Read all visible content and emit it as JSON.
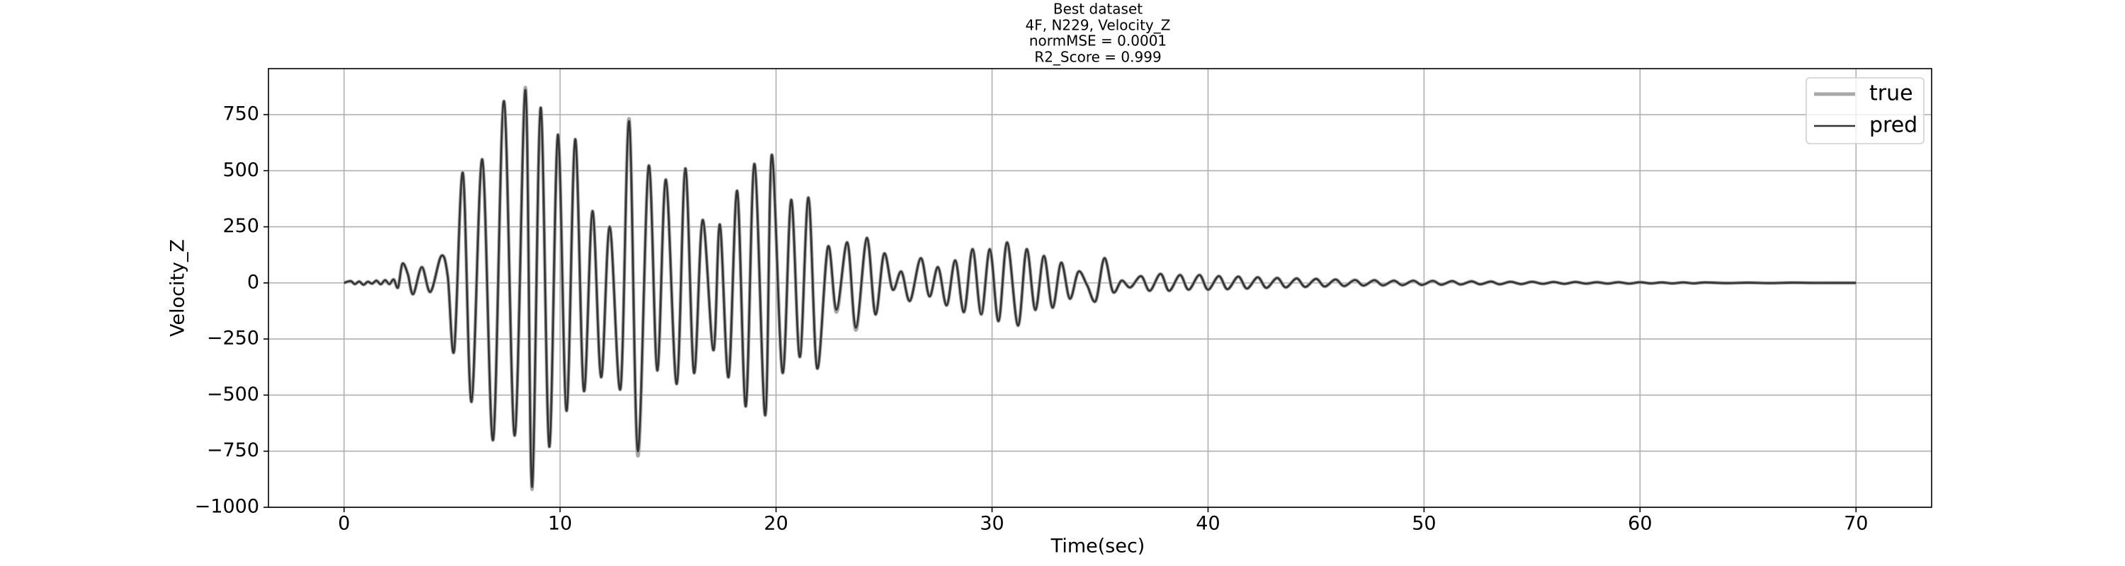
{
  "chart_data": {
    "type": "line",
    "title": [
      "Best dataset",
      "4F, N229, Velocity_Z",
      "normMSE = 0.0001",
      "R2_Score = 0.999"
    ],
    "xlabel": "Time(sec)",
    "ylabel": "Velocity_Z",
    "xlim": [
      -3.5,
      73.5
    ],
    "ylim": [
      -1000,
      955
    ],
    "xticks": [
      0,
      10,
      20,
      30,
      40,
      50,
      60,
      70
    ],
    "yticks": [
      {
        "value": -1000,
        "label": "−1000"
      },
      {
        "value": -750,
        "label": "−750"
      },
      {
        "value": -500,
        "label": "−500"
      },
      {
        "value": -250,
        "label": "−250"
      },
      0,
      250,
      500,
      750
    ],
    "grid": true,
    "legend": "upper right",
    "x": [
      0,
      0.3,
      0.5,
      0.7,
      0.9,
      1.1,
      1.3,
      1.5,
      1.7,
      1.9,
      2.1,
      2.3,
      2.5,
      2.7,
      2.95,
      3.2,
      3.6,
      4.0,
      4.5,
      4.8,
      5.1,
      5.5,
      5.9,
      6.4,
      6.9,
      7.4,
      7.9,
      8.4,
      8.7,
      9.1,
      9.5,
      9.9,
      10.3,
      10.7,
      11.1,
      11.5,
      11.9,
      12.3,
      12.8,
      13.2,
      13.6,
      14.1,
      14.5,
      14.9,
      15.4,
      15.8,
      16.2,
      16.6,
      17.1,
      17.4,
      17.8,
      18.2,
      18.6,
      19.0,
      19.5,
      19.8,
      20.3,
      20.7,
      21.1,
      21.5,
      21.9,
      22.4,
      22.8,
      23.3,
      23.7,
      24.2,
      24.6,
      25.0,
      25.4,
      25.8,
      26.2,
      26.7,
      27.1,
      27.5,
      27.9,
      28.3,
      28.7,
      29.1,
      29.5,
      29.9,
      30.3,
      30.7,
      31.2,
      31.6,
      32.0,
      32.4,
      32.8,
      33.2,
      33.6,
      34.0,
      34.4,
      34.8,
      35.2,
      35.6,
      36.0,
      36.4,
      36.9,
      37.3,
      37.8,
      38.2,
      38.7,
      39.1,
      39.6,
      40.0,
      40.5,
      40.9,
      41.4,
      41.8,
      42.3,
      42.7,
      43.2,
      43.6,
      44.1,
      44.5,
      45.0,
      45.4,
      45.9,
      46.3,
      46.8,
      47.2,
      47.7,
      48.1,
      48.6,
      49.0,
      49.5,
      49.9,
      50.4,
      50.8,
      51.3,
      51.7,
      52.2,
      52.6,
      53.1,
      53.5,
      54.0,
      54.5,
      55.0,
      55.5,
      56.0,
      56.5,
      57.0,
      57.5,
      58.0,
      58.5,
      59.0,
      59.5,
      60.0,
      60.5,
      61.0,
      61.5,
      62.0,
      62.5,
      63.0,
      64,
      65,
      66,
      67,
      68,
      69,
      70
    ],
    "series": [
      {
        "name": "true",
        "color": "#a8a8a8",
        "values": [
          0,
          8,
          -5,
          6,
          -8,
          5,
          -3,
          10,
          -6,
          12,
          -5,
          15,
          -20,
          85,
          40,
          -50,
          70,
          -40,
          120,
          30,
          -300,
          490,
          -530,
          550,
          -700,
          810,
          -680,
          870,
          -920,
          780,
          -730,
          660,
          -570,
          640,
          -480,
          320,
          -420,
          250,
          -470,
          730,
          -770,
          520,
          -390,
          460,
          -450,
          510,
          -400,
          280,
          -300,
          260,
          -420,
          410,
          -550,
          530,
          -590,
          570,
          -400,
          370,
          -330,
          380,
          -380,
          160,
          -130,
          180,
          -210,
          200,
          -140,
          130,
          -30,
          50,
          -80,
          110,
          -60,
          70,
          -100,
          100,
          -130,
          150,
          -140,
          150,
          -170,
          180,
          -190,
          150,
          -120,
          120,
          -110,
          90,
          -70,
          50,
          -10,
          -80,
          110,
          -40,
          10,
          -20,
          30,
          -35,
          40,
          -35,
          35,
          -30,
          35,
          -30,
          30,
          -28,
          28,
          -25,
          25,
          -22,
          22,
          -20,
          20,
          -18,
          18,
          -16,
          15,
          -14,
          13,
          -12,
          12,
          -11,
          10,
          -10,
          10,
          -9,
          9,
          -8,
          8,
          -7,
          7,
          -6,
          6,
          -6,
          5,
          -5,
          5,
          -4,
          4,
          -4,
          4,
          -3,
          3,
          -3,
          3,
          -3,
          3,
          -2,
          2,
          -2,
          2,
          -2,
          2,
          -1,
          1,
          -1,
          1,
          0,
          0,
          0
        ]
      },
      {
        "name": "pred",
        "color": "#333333",
        "values": [
          0,
          8,
          -5,
          6,
          -8,
          5,
          -3,
          10,
          -6,
          12,
          -5,
          15,
          -20,
          85,
          40,
          -50,
          70,
          -40,
          120,
          30,
          -300,
          490,
          -530,
          550,
          -700,
          810,
          -680,
          860,
          -910,
          780,
          -730,
          660,
          -570,
          640,
          -480,
          320,
          -420,
          250,
          -470,
          720,
          -750,
          520,
          -390,
          460,
          -450,
          510,
          -400,
          280,
          -300,
          260,
          -420,
          410,
          -550,
          530,
          -590,
          570,
          -400,
          370,
          -330,
          380,
          -380,
          160,
          -120,
          180,
          -200,
          200,
          -140,
          130,
          -30,
          50,
          -80,
          110,
          -60,
          70,
          -100,
          100,
          -130,
          150,
          -140,
          150,
          -170,
          180,
          -190,
          150,
          -120,
          120,
          -110,
          90,
          -70,
          50,
          -10,
          -80,
          110,
          -40,
          10,
          -20,
          30,
          -35,
          40,
          -35,
          35,
          -30,
          35,
          -30,
          30,
          -28,
          28,
          -25,
          25,
          -22,
          22,
          -20,
          20,
          -18,
          18,
          -16,
          15,
          -14,
          13,
          -12,
          12,
          -11,
          10,
          -10,
          10,
          -9,
          9,
          -8,
          8,
          -7,
          7,
          -6,
          6,
          -6,
          5,
          -5,
          5,
          -4,
          4,
          -4,
          4,
          -3,
          3,
          -3,
          3,
          -3,
          3,
          -2,
          2,
          -2,
          2,
          -2,
          2,
          -1,
          1,
          -1,
          1,
          0,
          0,
          0
        ]
      }
    ]
  }
}
